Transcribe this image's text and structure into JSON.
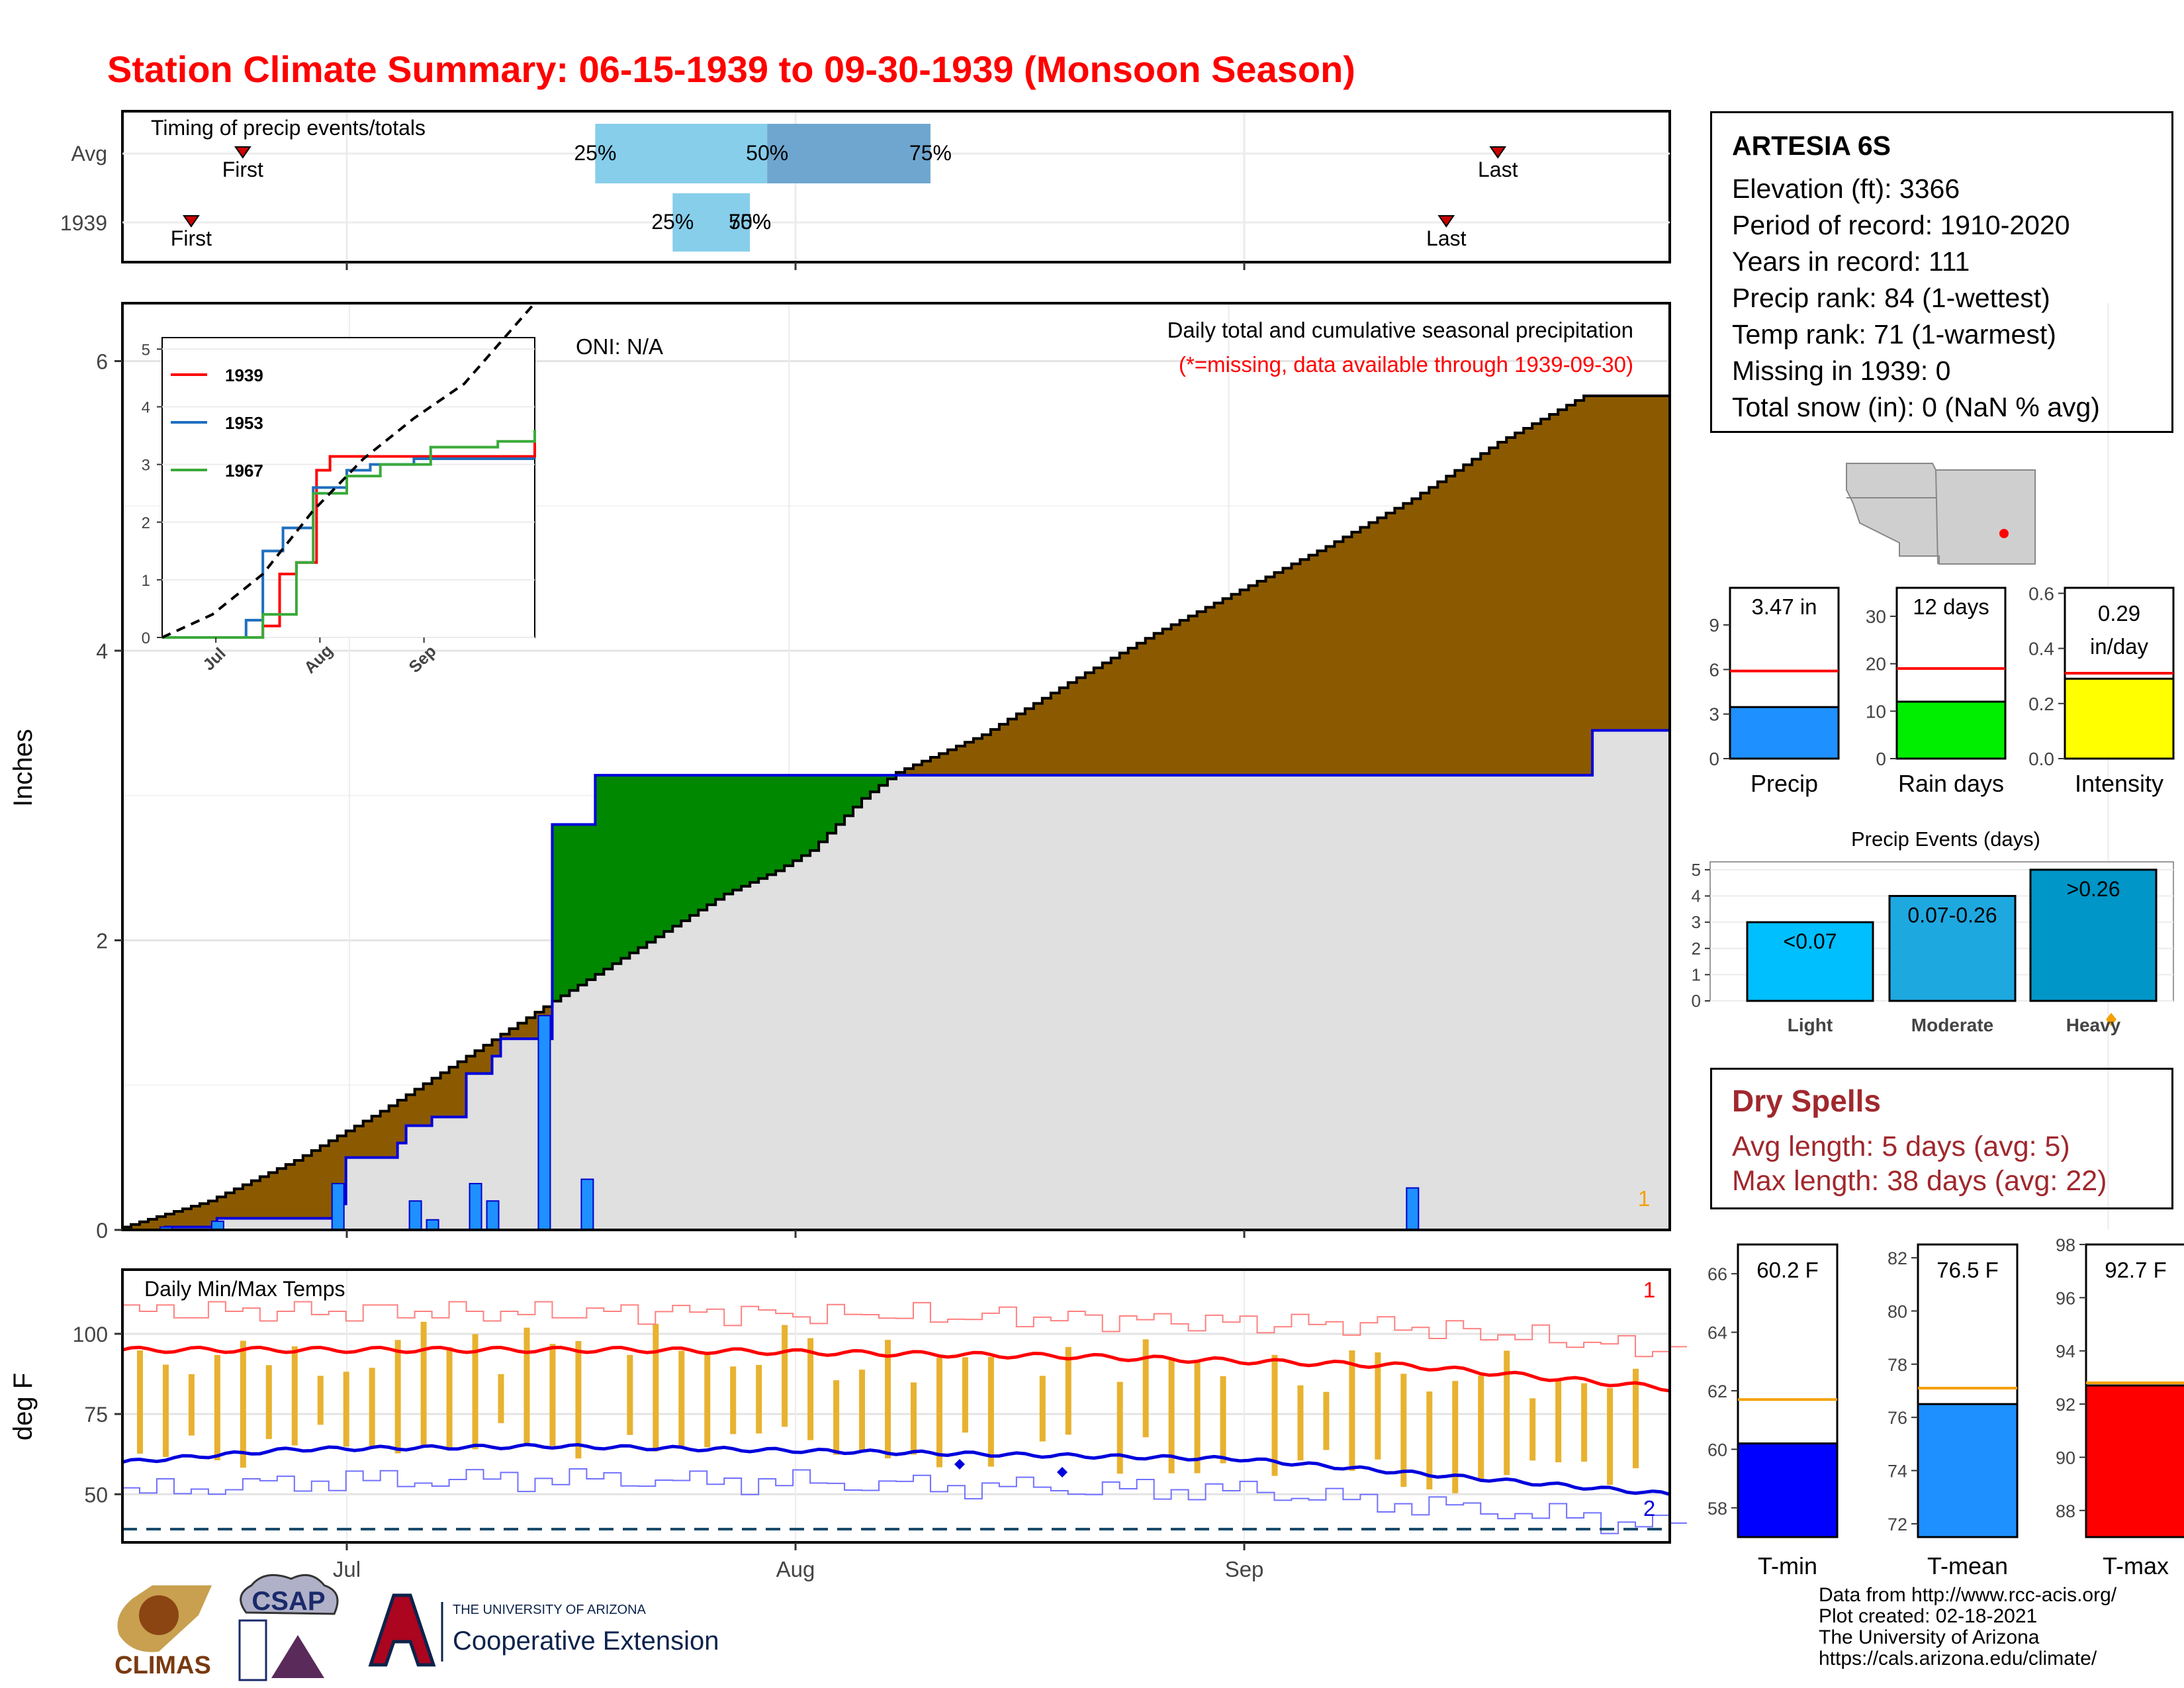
{
  "title": "Station Climate Summary: 06-15-1939 to 09-30-1939 (Monsoon Season)",
  "colors": {
    "title": "#ff0000",
    "cumulative_fill": "#8b5a00",
    "normal_fill": "#e0e0e0",
    "surplus_fill": "#008800",
    "daily_bar": "#1e90ff",
    "temp_bar": "#e8b230",
    "tmax_line": "#ff0000",
    "tmin_line": "#0000dd",
    "dry_text": "#a0282d"
  },
  "timing": {
    "title": "Timing of precip events/totals",
    "rows": [
      {
        "label": "Avg",
        "first_label": "First",
        "last_label": "Last",
        "p25_label": "25%",
        "p50_label": "50%",
        "p75_label": "75%"
      },
      {
        "label": "1939",
        "first_label": "First",
        "last_label": "Last",
        "p25_label": "25%",
        "p50_label": "50%",
        "p75_label": "75%"
      }
    ]
  },
  "main": {
    "y_axis_label": "Inches",
    "y_ticks": [
      "0",
      "2",
      "4",
      "6"
    ],
    "oni": "ONI: N/A",
    "subtitle": "Daily total and cumulative seasonal precipitation",
    "missing_note": "(*=missing, data available through 1939-09-30)",
    "missing_count": "1"
  },
  "inset": {
    "y_ticks": [
      "0",
      "1",
      "2",
      "3",
      "4",
      "5"
    ],
    "x_ticks": [
      "Jul",
      "Aug",
      "Sep"
    ],
    "legend": [
      "1939",
      "1953",
      "1967"
    ]
  },
  "temps": {
    "title": "Daily Min/Max Temps",
    "y_axis_label": "deg F",
    "y_ticks": [
      "50",
      "75",
      "100"
    ],
    "x_ticks": [
      "Jul",
      "Aug",
      "Sep"
    ],
    "max_missing": "1",
    "min_missing": "2"
  },
  "station": {
    "name": "ARTESIA 6S",
    "lines": [
      "Elevation (ft): 3366",
      "Period of record: 1910-2020",
      "Years in record: 111",
      "Precip rank: 84 (1-wettest)",
      "Temp rank: 71 (1-warmest)",
      "Missing in 1939: 0",
      "Total snow (in): 0 (NaN % avg)"
    ]
  },
  "summary_bars": {
    "precip": {
      "label": "Precip",
      "value_label": "3.47 in",
      "ticks": [
        "0",
        "3",
        "6",
        "9"
      ]
    },
    "rain_days": {
      "label": "Rain days",
      "value_label": "12 days",
      "ticks": [
        "0",
        "10",
        "20",
        "30"
      ]
    },
    "intensity": {
      "label": "Intensity",
      "value_label_1": "0.29",
      "value_label_2": "in/day",
      "ticks": [
        "0.0",
        "0.2",
        "0.4",
        "0.6"
      ]
    }
  },
  "events": {
    "title": "Precip Events (days)",
    "ticks": [
      "0",
      "1",
      "2",
      "3",
      "4",
      "5"
    ],
    "bars": [
      {
        "cat": "Light",
        "label": "<0.07"
      },
      {
        "cat": "Moderate",
        "label": "0.07-0.26"
      },
      {
        "cat": "Heavy",
        "label": ">0.26"
      }
    ]
  },
  "dry_spells": {
    "title": "Dry Spells",
    "avg": "Avg length: 5 days (avg: 5)",
    "max": "Max length: 38 days (avg: 22)"
  },
  "temp_summary": {
    "tmin": {
      "label": "T-min",
      "value_label": "60.2 F",
      "ticks": [
        "58",
        "60",
        "62",
        "64",
        "66"
      ]
    },
    "tmean": {
      "label": "T-mean",
      "value_label": "76.5 F",
      "ticks": [
        "72",
        "74",
        "76",
        "78",
        "80",
        "82"
      ]
    },
    "tmax": {
      "label": "T-max",
      "value_label": "92.7 F",
      "ticks": [
        "88",
        "90",
        "92",
        "94",
        "96",
        "98"
      ]
    }
  },
  "footer": {
    "lines": [
      "Data from http://www.rcc-acis.org/",
      "Plot created: 02-18-2021",
      "The University of Arizona",
      "https://cals.arizona.edu/climate/"
    ],
    "logo_climas": "CLIMAS",
    "logo_csap": "CSAP",
    "logo_ua_small": "THE UNIVERSITY OF ARIZONA",
    "logo_ua_big": "Cooperative Extension"
  },
  "chart_data": [
    {
      "type": "bar",
      "name": "timing",
      "title": "Timing of precip events/totals",
      "x_domain": [
        0,
        107
      ],
      "series": [
        {
          "row": "Avg",
          "first": 14,
          "p25": 55,
          "p50": 75,
          "p75": 94,
          "last": 160
        },
        {
          "row": "1939",
          "first": 8,
          "p25": 64,
          "p50": 73,
          "p75": 73,
          "last": 154
        }
      ]
    },
    {
      "type": "area",
      "name": "daily and cumulative precipitation",
      "ylabel": "Inches",
      "ylim": [
        0,
        6.4
      ],
      "x_ticks": [
        {
          "label": "Jul",
          "day": 16
        },
        {
          "label": "Aug",
          "day": 47
        },
        {
          "label": "Sep",
          "day": 78
        }
      ],
      "cumulative_normal": [
        [
          0,
          0.02
        ],
        [
          10,
          0.2
        ],
        [
          20,
          0.48
        ],
        [
          30,
          0.82
        ],
        [
          40,
          1.2
        ],
        [
          50,
          1.58
        ],
        [
          60,
          1.95
        ],
        [
          70,
          2.32
        ],
        [
          76,
          2.48
        ],
        [
          80,
          2.62
        ],
        [
          86,
          2.98
        ],
        [
          90,
          3.16
        ],
        [
          100,
          3.42
        ],
        [
          110,
          3.78
        ],
        [
          120,
          4.12
        ],
        [
          130,
          4.42
        ],
        [
          140,
          4.72
        ],
        [
          150,
          5.05
        ],
        [
          160,
          5.44
        ],
        [
          170,
          5.76
        ]
      ],
      "cumulative_observed": [
        [
          0,
          0
        ],
        [
          5,
          0.02
        ],
        [
          11,
          0.08
        ],
        [
          14,
          0.08
        ],
        [
          25,
          0.18
        ],
        [
          26,
          0.5
        ],
        [
          32,
          0.6
        ],
        [
          33,
          0.72
        ],
        [
          36,
          0.78
        ],
        [
          40,
          1.08
        ],
        [
          43,
          1.2
        ],
        [
          44,
          1.32
        ],
        [
          49,
          1.32
        ],
        [
          50,
          2.8
        ],
        [
          55,
          3.14
        ],
        [
          170,
          3.14
        ],
        [
          171,
          3.45
        ],
        [
          180,
          3.47
        ]
      ],
      "daily_precip": [
        [
          5,
          0.02
        ],
        [
          11,
          0.06
        ],
        [
          25,
          0.32
        ],
        [
          34,
          0.2
        ],
        [
          36,
          0.07
        ],
        [
          41,
          0.32
        ],
        [
          43,
          0.2
        ],
        [
          49,
          1.48
        ],
        [
          54,
          0.35
        ],
        [
          150,
          0.29
        ]
      ]
    },
    {
      "type": "line",
      "name": "inset cumulative precipitation",
      "x_ticks": [
        "Jul",
        "Aug",
        "Sep"
      ],
      "ylim": [
        0,
        5.2
      ],
      "series": [
        {
          "name": "1939",
          "values": [
            [
              0,
              0
            ],
            [
              30,
              0.2
            ],
            [
              35,
              1.1
            ],
            [
              40,
              1.3
            ],
            [
              46,
              2.9
            ],
            [
              50,
              3.14
            ],
            [
              110,
              3.14
            ],
            [
              111,
              3.47
            ]
          ]
        },
        {
          "name": "1953",
          "values": [
            [
              0,
              0
            ],
            [
              25,
              0.3
            ],
            [
              30,
              1.5
            ],
            [
              36,
              1.9
            ],
            [
              45,
              2.6
            ],
            [
              55,
              2.9
            ],
            [
              62,
              3.0
            ],
            [
              75,
              3.1
            ],
            [
              111,
              3.1
            ]
          ]
        },
        {
          "name": "1967",
          "values": [
            [
              0,
              0
            ],
            [
              30,
              0.4
            ],
            [
              40,
              1.3
            ],
            [
              45,
              2.5
            ],
            [
              55,
              2.8
            ],
            [
              65,
              3.0
            ],
            [
              80,
              3.3
            ],
            [
              100,
              3.4
            ],
            [
              111,
              3.6
            ]
          ]
        }
      ],
      "normal": [
        [
          0,
          0
        ],
        [
          15,
          0.4
        ],
        [
          30,
          1.1
        ],
        [
          45,
          2.2
        ],
        [
          60,
          3.1
        ],
        [
          75,
          3.8
        ],
        [
          90,
          4.4
        ],
        [
          111,
          5.8
        ]
      ]
    },
    {
      "type": "bar",
      "name": "daily min/max temps",
      "title": "Daily Min/Max Temps",
      "ylabel": "deg F",
      "ylim": [
        35,
        120
      ],
      "tmax_normal": [
        [
          0,
          95
        ],
        [
          60,
          95
        ],
        [
          110,
          93
        ],
        [
          150,
          90
        ],
        [
          180,
          83
        ]
      ],
      "tmin_normal": [
        [
          0,
          60
        ],
        [
          20,
          64
        ],
        [
          50,
          65
        ],
        [
          90,
          63
        ],
        [
          130,
          61
        ],
        [
          180,
          50
        ]
      ]
    },
    {
      "type": "bar",
      "name": "season precip summary",
      "categories": [
        "Precip",
        "Rain days",
        "Intensity"
      ],
      "values": [
        3.47,
        12,
        0.29
      ],
      "averages": [
        5.9,
        19,
        0.31
      ],
      "ylims": [
        [
          0,
          11.5
        ],
        [
          0,
          36
        ],
        [
          0,
          0.62
        ]
      ]
    },
    {
      "type": "bar",
      "name": "Precip Events (days)",
      "title": "Precip Events (days)",
      "categories": [
        "Light",
        "Moderate",
        "Heavy"
      ],
      "values": [
        3,
        4,
        5
      ],
      "ylim": [
        0,
        5.3
      ]
    },
    {
      "type": "bar",
      "name": "season temperature summary",
      "categories": [
        "T-min",
        "T-mean",
        "T-max"
      ],
      "values": [
        60.2,
        76.5,
        92.7
      ],
      "averages": [
        61.7,
        77.1,
        92.8
      ],
      "ylims": [
        [
          57,
          67
        ],
        [
          71.5,
          82.5
        ],
        [
          87,
          98
        ]
      ]
    }
  ]
}
